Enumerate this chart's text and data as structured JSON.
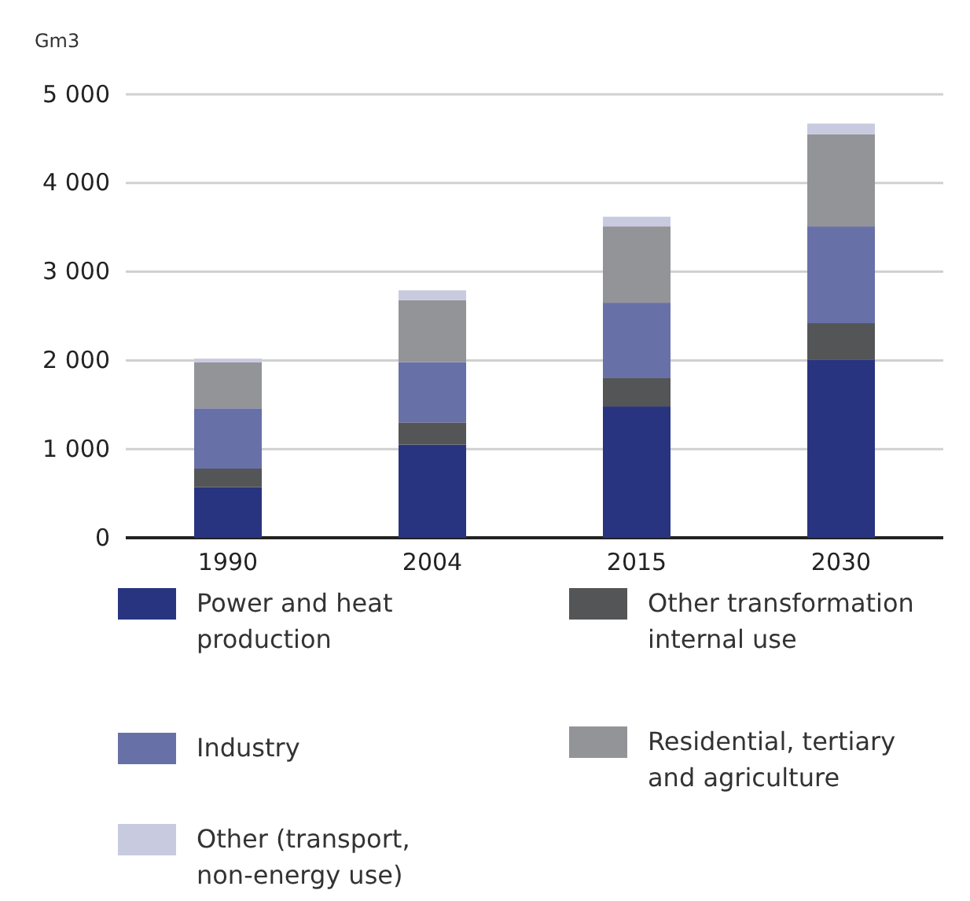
{
  "chart_data": {
    "type": "bar",
    "stacked": true,
    "ylabel": "Gm3",
    "categories": [
      "1990",
      "2004",
      "2015",
      "2030"
    ],
    "series": [
      {
        "name": "Power and heat production",
        "color": "#283480",
        "values": [
          570,
          1050,
          1480,
          2010
        ]
      },
      {
        "name": "Other transformation internal use",
        "color": "#545557",
        "values": [
          210,
          250,
          320,
          410
        ]
      },
      {
        "name": "Industry",
        "color": "#6870a8",
        "values": [
          680,
          680,
          850,
          1090
        ]
      },
      {
        "name": "Residential, tertiary and agriculture",
        "color": "#939498",
        "values": [
          520,
          700,
          860,
          1040
        ]
      },
      {
        "name": "Other (transport, non-energy use)",
        "color": "#c8cae0",
        "values": [
          40,
          110,
          110,
          120
        ]
      }
    ],
    "ylim": [
      0,
      5000
    ],
    "yticks": [
      {
        "value": 0,
        "label": "0"
      },
      {
        "value": 1000,
        "label": "1 000"
      },
      {
        "value": 2000,
        "label": "2 000"
      },
      {
        "value": 3000,
        "label": "3 000"
      },
      {
        "value": 4000,
        "label": "4 000"
      },
      {
        "value": 5000,
        "label": "5 000"
      }
    ],
    "grid": "y",
    "legend": "bottom"
  }
}
